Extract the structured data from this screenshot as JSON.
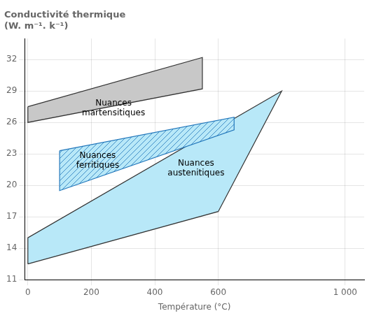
{
  "chart_data": {
    "type": "area",
    "title": "Conductivité thermique\n(W. m⁻¹. k⁻¹)",
    "xlabel": "Température (°C)",
    "xlim": [
      -10,
      1060
    ],
    "ylim": [
      11,
      34
    ],
    "xticks": [
      0,
      200,
      400,
      600,
      {
        "value": 1000,
        "label": "1 000"
      }
    ],
    "yticks": [
      11,
      14,
      17,
      20,
      23,
      26,
      29,
      32
    ],
    "grid": true,
    "series": [
      {
        "color": "#c8c8c8",
        "x": [
          0,
          550,
          550,
          0
        ],
        "y": [
          27.5,
          32.2,
          29.2,
          26.0
        ]
      },
      {
        "color": "#b8e8f8",
        "x": [
          0,
          600,
          800,
          0
        ],
        "y": [
          12.5,
          17.5,
          29.0,
          15.0
        ]
      },
      {
        "color": "#b8e8f8",
        "x": [
          100,
          650,
          650,
          100
        ],
        "y": [
          23.3,
          26.5,
          25.3,
          19.5
        ]
      }
    ],
    "annotations": [
      {
        "text": "Nuances\nmartensitiques",
        "x": 270,
        "y": 28.2
      },
      {
        "text": "Nuances\nferritiques",
        "x": 220,
        "y": 23.2
      },
      {
        "text": "Nuances\naustenitiques",
        "x": 530,
        "y": 22.5
      }
    ]
  }
}
